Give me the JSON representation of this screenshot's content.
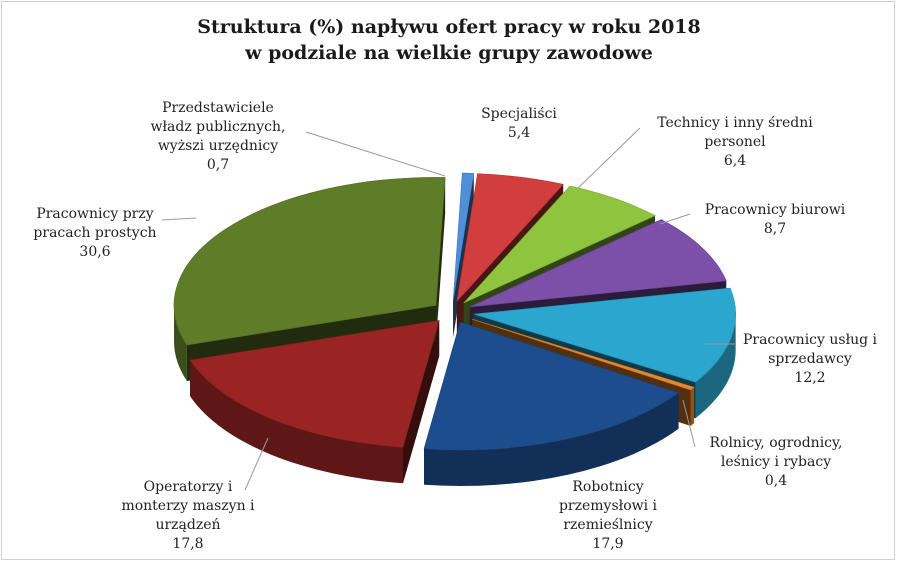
{
  "chart_data": {
    "type": "pie",
    "title_lines": [
      "Struktura (%) napływu ofert pracy w roku 2018",
      "w podziale na wielkie grupy zawodowe"
    ],
    "slices": [
      {
        "label_lines": [
          "Przedstawiciele",
          "władz publicznych,",
          "wyższi urzędnicy"
        ],
        "value": 0.7,
        "value_text": "0,7",
        "color": "#4f8fd8"
      },
      {
        "label_lines": [
          "Specjaliści"
        ],
        "value": 5.4,
        "value_text": "5,4",
        "color": "#d23d3d"
      },
      {
        "label_lines": [
          "Technicy i inny średni",
          "personel"
        ],
        "value": 6.4,
        "value_text": "6,4",
        "color": "#8fc43f"
      },
      {
        "label_lines": [
          "Pracownicy biurowi"
        ],
        "value": 8.7,
        "value_text": "8,7",
        "color": "#7c4fa8"
      },
      {
        "label_lines": [
          "Pracownicy usług i",
          "sprzedawcy"
        ],
        "value": 12.2,
        "value_text": "12,2",
        "color": "#2ba6cf"
      },
      {
        "label_lines": [
          "Rolnicy, ogrodnicy,",
          "leśnicy i rybacy"
        ],
        "value": 0.4,
        "value_text": "0,4",
        "color": "#e9882a"
      },
      {
        "label_lines": [
          "Robotnicy",
          "przemysłowi i",
          "rzemieślnicy"
        ],
        "value": 17.9,
        "value_text": "17,9",
        "color": "#1d4d8c"
      },
      {
        "label_lines": [
          "Operatorzy i",
          "monterzy maszyn i",
          "urządzeń"
        ],
        "value": 17.8,
        "value_text": "17,8",
        "color": "#9a2424"
      },
      {
        "label_lines": [
          "Pracownicy przy",
          "pracach prostych"
        ],
        "value": 30.6,
        "value_text": "30,6",
        "color": "#5f7c28"
      }
    ]
  }
}
